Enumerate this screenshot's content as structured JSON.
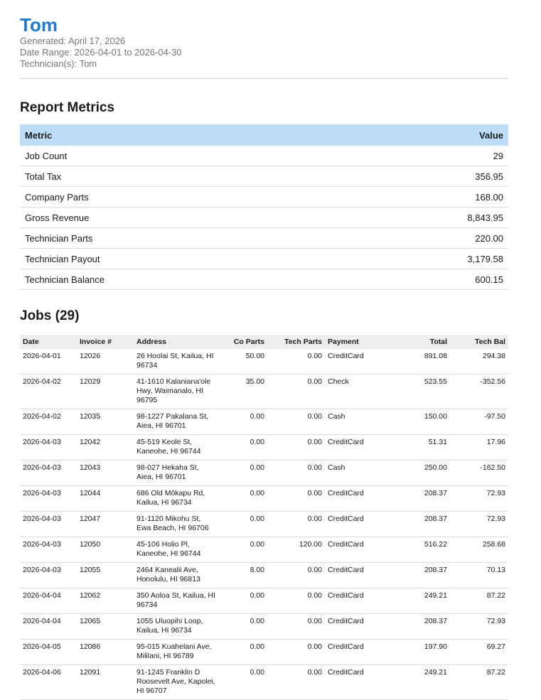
{
  "header": {
    "title": "Tom",
    "generated": "Generated: April 17, 2026",
    "date_range": "Date Range: 2026-04-01 to 2026-04-30",
    "technicians": "Technician(s): Tom"
  },
  "metrics": {
    "heading": "Report Metrics",
    "col_metric": "Metric",
    "col_value": "Value",
    "rows": [
      {
        "metric": "Job Count",
        "value": "29"
      },
      {
        "metric": "Total Tax",
        "value": "356.95"
      },
      {
        "metric": "Company Parts",
        "value": "168.00"
      },
      {
        "metric": "Gross Revenue",
        "value": "8,843.95"
      },
      {
        "metric": "Technician Parts",
        "value": "220.00"
      },
      {
        "metric": "Technician Payout",
        "value": "3,179.58"
      },
      {
        "metric": "Technician Balance",
        "value": "600.15"
      }
    ]
  },
  "jobs": {
    "heading": "Jobs (29)",
    "columns": {
      "date": "Date",
      "invoice": "Invoice #",
      "address": "Address",
      "co_parts": "Co Parts",
      "tech_parts": "Tech Parts",
      "payment": "Payment",
      "total": "Total",
      "tech_bal": "Tech Bal"
    },
    "rows": [
      {
        "date": "2026-04-01",
        "invoice": "12026",
        "address": "26 Hoolai St, Kailua, HI 96734",
        "co_parts": "50.00",
        "tech_parts": "0.00",
        "payment": "CreditCard",
        "total": "891.08",
        "tech_bal": "294.38"
      },
      {
        "date": "2026-04-02",
        "invoice": "12029",
        "address": "41-1610 Kalaniana'ole Hwy, Waimanalo, HI 96795",
        "co_parts": "35.00",
        "tech_parts": "0.00",
        "payment": "Check",
        "total": "523.55",
        "tech_bal": "-352.56"
      },
      {
        "date": "2026-04-02",
        "invoice": "12035",
        "address": "98-1227 Pakalana St, Aiea, HI 96701",
        "co_parts": "0.00",
        "tech_parts": "0.00",
        "payment": "Cash",
        "total": "150.00",
        "tech_bal": "-97.50"
      },
      {
        "date": "2026-04-03",
        "invoice": "12042",
        "address": "45-519 Keole St, Kaneohe, HI 96744",
        "co_parts": "0.00",
        "tech_parts": "0.00",
        "payment": "CreditCard",
        "total": "51.31",
        "tech_bal": "17.96"
      },
      {
        "date": "2026-04-03",
        "invoice": "12043",
        "address": "98-027 Hekaha St, Aiea, HI 96701",
        "co_parts": "0.00",
        "tech_parts": "0.00",
        "payment": "Cash",
        "total": "250.00",
        "tech_bal": "-162.50"
      },
      {
        "date": "2026-04-03",
        "invoice": "12044",
        "address": "686 Old Mōkapu Rd, Kailua, HI 96734",
        "co_parts": "0.00",
        "tech_parts": "0.00",
        "payment": "CreditCard",
        "total": "208.37",
        "tech_bal": "72.93"
      },
      {
        "date": "2026-04-03",
        "invoice": "12047",
        "address": "91-1120 Mikohu St, Ewa Beach, HI 96706",
        "co_parts": "0.00",
        "tech_parts": "0.00",
        "payment": "CreditCard",
        "total": "208.37",
        "tech_bal": "72.93"
      },
      {
        "date": "2026-04-03",
        "invoice": "12050",
        "address": "45-106 Holio Pl, Kaneohe, HI 96744",
        "co_parts": "0.00",
        "tech_parts": "120.00",
        "payment": "CreditCard",
        "total": "516.22",
        "tech_bal": "258.68"
      },
      {
        "date": "2026-04-03",
        "invoice": "12055",
        "address": "2464 Kanealii Ave, Honolulu, HI 96813",
        "co_parts": "8.00",
        "tech_parts": "0.00",
        "payment": "CreditCard",
        "total": "208.37",
        "tech_bal": "70.13"
      },
      {
        "date": "2026-04-04",
        "invoice": "12062",
        "address": "350 Aoloa St, Kailua, HI 96734",
        "co_parts": "0.00",
        "tech_parts": "0.00",
        "payment": "CreditCard",
        "total": "249.21",
        "tech_bal": "87.22"
      },
      {
        "date": "2026-04-04",
        "invoice": "12065",
        "address": "1055 Uluopihi Loop, Kailua, HI 96734",
        "co_parts": "0.00",
        "tech_parts": "0.00",
        "payment": "CreditCard",
        "total": "208.37",
        "tech_bal": "72.93"
      },
      {
        "date": "2026-04-05",
        "invoice": "12086",
        "address": "95-015 Kuahelani Ave, Mililani, HI 96789",
        "co_parts": "0.00",
        "tech_parts": "0.00",
        "payment": "CreditCard",
        "total": "197.90",
        "tech_bal": "69.27"
      },
      {
        "date": "2026-04-06",
        "invoice": "12091",
        "address": "91-1245 Franklin D Roosevelt Ave, Kapolei, HI 96707",
        "co_parts": "0.00",
        "tech_parts": "0.00",
        "payment": "CreditCard",
        "total": "249.21",
        "tech_bal": "87.22"
      }
    ]
  }
}
